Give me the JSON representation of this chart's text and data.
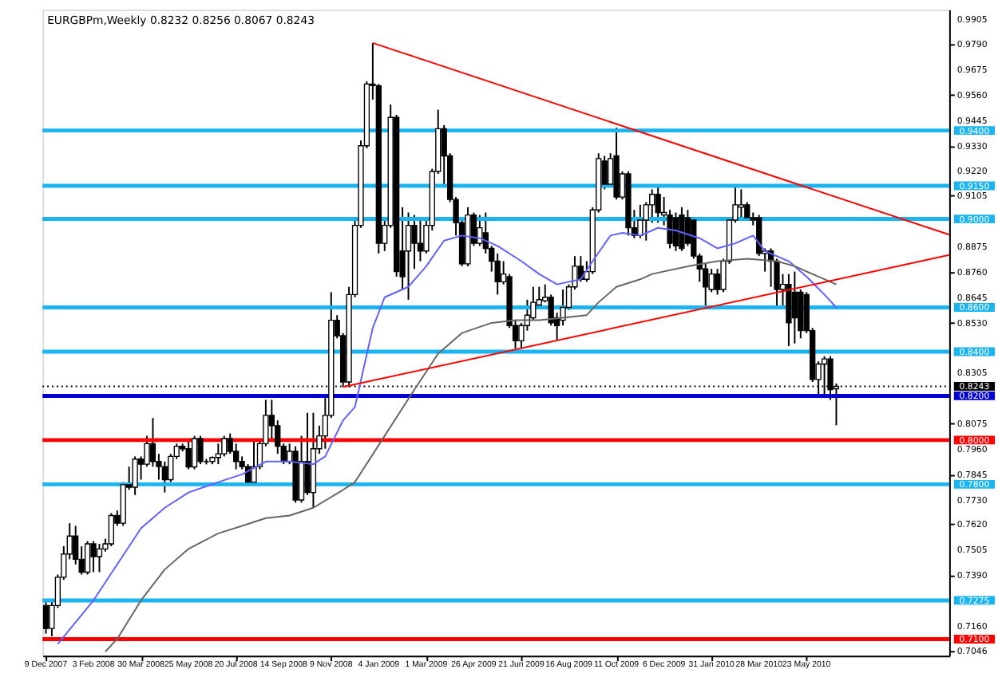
{
  "chart_data": {
    "type": "candlestick",
    "title": "EURGBPm,Weekly  0.8232 0.8256 0.8067 0.8243",
    "x": [
      "2007-12-09",
      "2007-12-16",
      "2007-12-23",
      "2007-12-30",
      "2008-01-06",
      "2008-01-13",
      "2008-01-20",
      "2008-01-27",
      "2008-02-03",
      "2008-02-10",
      "2008-02-17",
      "2008-02-24",
      "2008-03-02",
      "2008-03-09",
      "2008-03-16",
      "2008-03-23",
      "2008-03-30",
      "2008-04-06",
      "2008-04-13",
      "2008-04-20",
      "2008-04-27",
      "2008-05-04",
      "2008-05-11",
      "2008-05-18",
      "2008-05-25",
      "2008-06-01",
      "2008-06-08",
      "2008-06-15",
      "2008-06-22",
      "2008-06-29",
      "2008-07-06",
      "2008-07-13",
      "2008-07-20",
      "2008-07-27",
      "2008-08-03",
      "2008-08-10",
      "2008-08-17",
      "2008-08-24",
      "2008-08-31",
      "2008-09-07",
      "2008-09-14",
      "2008-09-21",
      "2008-09-28",
      "2008-10-05",
      "2008-10-12",
      "2008-10-19",
      "2008-10-26",
      "2008-11-02",
      "2008-11-09",
      "2008-11-16",
      "2008-11-23",
      "2008-11-30",
      "2008-12-07",
      "2008-12-14",
      "2008-12-21",
      "2008-12-28",
      "2009-01-04",
      "2009-01-11",
      "2009-01-18",
      "2009-01-25",
      "2009-02-01",
      "2009-02-08",
      "2009-02-15",
      "2009-02-22",
      "2009-03-01",
      "2009-03-08",
      "2009-03-15",
      "2009-03-22",
      "2009-03-29",
      "2009-04-05",
      "2009-04-12",
      "2009-04-19",
      "2009-04-26",
      "2009-05-03",
      "2009-05-10",
      "2009-05-17",
      "2009-05-24",
      "2009-05-31",
      "2009-06-07",
      "2009-06-14",
      "2009-06-21",
      "2009-06-28",
      "2009-07-05",
      "2009-07-12",
      "2009-07-19",
      "2009-07-26",
      "2009-08-02",
      "2009-08-09",
      "2009-08-16",
      "2009-08-23",
      "2009-08-30",
      "2009-09-06",
      "2009-09-13",
      "2009-09-20",
      "2009-09-27",
      "2009-10-04",
      "2009-10-11",
      "2009-10-18",
      "2009-10-25",
      "2009-11-01",
      "2009-11-08",
      "2009-11-15",
      "2009-11-22",
      "2009-11-29",
      "2009-12-06",
      "2009-12-13",
      "2009-12-20",
      "2009-12-27",
      "2010-01-03",
      "2010-01-10",
      "2010-01-17",
      "2010-01-24",
      "2010-01-31",
      "2010-02-07",
      "2010-02-14",
      "2010-02-21",
      "2010-02-28",
      "2010-03-07",
      "2010-03-14",
      "2010-03-21",
      "2010-03-28",
      "2010-04-04",
      "2010-04-11",
      "2010-04-18",
      "2010-04-25",
      "2010-05-02",
      "2010-05-09",
      "2010-05-16",
      "2010-05-23",
      "2010-05-30",
      "2010-06-06",
      "2010-06-13",
      "2010-06-20",
      "2010-06-27"
    ],
    "ohlc": [
      [
        0.7252,
        0.7276,
        0.7125,
        0.7148
      ],
      [
        0.7148,
        0.7276,
        0.7113,
        0.7252
      ],
      [
        0.7252,
        0.7392,
        0.7241,
        0.738
      ],
      [
        0.738,
        0.752,
        0.7368,
        0.7485
      ],
      [
        0.7485,
        0.7624,
        0.7461,
        0.7566
      ],
      [
        0.7566,
        0.7612,
        0.7438,
        0.7461
      ],
      [
        0.7461,
        0.752,
        0.7392,
        0.7403
      ],
      [
        0.7403,
        0.7543,
        0.7392,
        0.7531
      ],
      [
        0.7531,
        0.7543,
        0.7403,
        0.7473
      ],
      [
        0.7473,
        0.7531,
        0.7403,
        0.7508
      ],
      [
        0.7508,
        0.7554,
        0.7496,
        0.7531
      ],
      [
        0.7531,
        0.767,
        0.752,
        0.7659
      ],
      [
        0.7659,
        0.7682,
        0.7612,
        0.7624
      ],
      [
        0.7624,
        0.781,
        0.7612,
        0.7798
      ],
      [
        0.7798,
        0.788,
        0.7775,
        0.7787
      ],
      [
        0.7787,
        0.7926,
        0.7752,
        0.7914
      ],
      [
        0.7914,
        0.7926,
        0.7821,
        0.7891
      ],
      [
        0.7891,
        0.8019,
        0.788,
        0.7984
      ],
      [
        0.7984,
        0.81,
        0.788,
        0.7903
      ],
      [
        0.7903,
        0.7938,
        0.7821,
        0.788
      ],
      [
        0.788,
        0.7903,
        0.7763,
        0.7821
      ],
      [
        0.7821,
        0.7938,
        0.781,
        0.7926
      ],
      [
        0.7926,
        0.7984,
        0.7914,
        0.7972
      ],
      [
        0.7972,
        0.7984,
        0.7949,
        0.7961
      ],
      [
        0.7961,
        0.8007,
        0.7868,
        0.7879
      ],
      [
        0.7879,
        0.8019,
        0.7868,
        0.8007
      ],
      [
        0.8007,
        0.8019,
        0.7891,
        0.7903
      ],
      [
        0.7903,
        0.7915,
        0.789,
        0.7903
      ],
      [
        0.7903,
        0.7926,
        0.7891,
        0.7921
      ],
      [
        0.7921,
        0.7984,
        0.7891,
        0.7938
      ],
      [
        0.7938,
        0.8019,
        0.7926,
        0.8007
      ],
      [
        0.8007,
        0.803,
        0.7938,
        0.7949
      ],
      [
        0.7949,
        0.7984,
        0.7868,
        0.7903
      ],
      [
        0.7903,
        0.7926,
        0.7868,
        0.788
      ],
      [
        0.788,
        0.7891,
        0.7798,
        0.781
      ],
      [
        0.781,
        0.7996,
        0.7798,
        0.788
      ],
      [
        0.788,
        0.7996,
        0.7868,
        0.7984
      ],
      [
        0.7984,
        0.8182,
        0.7972,
        0.8112
      ],
      [
        0.8112,
        0.8182,
        0.7996,
        0.8065
      ],
      [
        0.8065,
        0.8089,
        0.7938,
        0.7972
      ],
      [
        0.7972,
        0.7984,
        0.7891,
        0.7903
      ],
      [
        0.7903,
        0.7984,
        0.7891,
        0.7949
      ],
      [
        0.7949,
        0.7972,
        0.7717,
        0.7729
      ],
      [
        0.7729,
        0.8019,
        0.7717,
        0.7903
      ],
      [
        0.7903,
        0.8123,
        0.7752,
        0.7763
      ],
      [
        0.7763,
        0.8123,
        0.7694,
        0.7961
      ],
      [
        0.7961,
        0.8065,
        0.7938,
        0.8019
      ],
      [
        0.8019,
        0.8205,
        0.7961,
        0.8112
      ],
      [
        0.8112,
        0.8669,
        0.81,
        0.8542
      ],
      [
        0.8542,
        0.8565,
        0.846,
        0.8472
      ],
      [
        0.8472,
        0.8484,
        0.824,
        0.8263
      ],
      [
        0.8263,
        0.8693,
        0.824,
        0.8658
      ],
      [
        0.8658,
        0.8995,
        0.8646,
        0.8971
      ],
      [
        0.8971,
        0.9355,
        0.896,
        0.9331
      ],
      [
        0.9331,
        0.9622,
        0.932,
        0.961
      ],
      [
        0.961,
        0.9796,
        0.954,
        0.9603
      ],
      [
        0.9603,
        0.961,
        0.8844,
        0.889
      ],
      [
        0.889,
        0.8995,
        0.8855,
        0.8971
      ],
      [
        0.8971,
        0.9517,
        0.896,
        0.9459
      ],
      [
        0.9459,
        0.9471,
        0.8739,
        0.8762
      ],
      [
        0.8855,
        0.9053,
        0.8681,
        0.8739
      ],
      [
        0.8855,
        0.9029,
        0.8635,
        0.8971
      ],
      [
        0.8971,
        0.9018,
        0.8774,
        0.889
      ],
      [
        0.889,
        0.8995,
        0.8809,
        0.8855
      ],
      [
        0.8855,
        0.9006,
        0.8844,
        0.8971
      ],
      [
        0.8971,
        0.9227,
        0.8948,
        0.9215
      ],
      [
        0.9215,
        0.9494,
        0.9204,
        0.9408
      ],
      [
        0.9408,
        0.9424,
        0.9157,
        0.9285
      ],
      [
        0.9285,
        0.9297,
        0.9076,
        0.9088
      ],
      [
        0.9088,
        0.9099,
        0.8925,
        0.8983
      ],
      [
        0.8983,
        0.9006,
        0.8786,
        0.8797
      ],
      [
        0.8797,
        0.9053,
        0.8786,
        0.9018
      ],
      [
        0.9018,
        0.9029,
        0.8878,
        0.889
      ],
      [
        0.889,
        0.9018,
        0.8878,
        0.896
      ],
      [
        0.8937,
        0.9029,
        0.8844,
        0.8867
      ],
      [
        0.8867,
        0.8878,
        0.8762,
        0.8809
      ],
      [
        0.8809,
        0.8844,
        0.8658,
        0.8716
      ],
      [
        0.8716,
        0.8809,
        0.8704,
        0.8751
      ],
      [
        0.8739,
        0.8751,
        0.8507,
        0.8518
      ],
      [
        0.8518,
        0.8542,
        0.8414,
        0.8449
      ],
      [
        0.8449,
        0.853,
        0.8414,
        0.8518
      ],
      [
        0.8518,
        0.8635,
        0.8495,
        0.8565
      ],
      [
        0.8553,
        0.8693,
        0.8542,
        0.8623
      ],
      [
        0.8611,
        0.8693,
        0.86,
        0.8635
      ],
      [
        0.863,
        0.8704,
        0.8623,
        0.8646
      ],
      [
        0.8646,
        0.8658,
        0.8518,
        0.853
      ],
      [
        0.8553,
        0.8576,
        0.8449,
        0.8518
      ],
      [
        0.8542,
        0.8681,
        0.8518,
        0.86
      ],
      [
        0.86,
        0.8704,
        0.8588,
        0.8693
      ],
      [
        0.8693,
        0.8832,
        0.8681,
        0.8786
      ],
      [
        0.8786,
        0.8832,
        0.8716,
        0.8727
      ],
      [
        0.8727,
        0.8809,
        0.8716,
        0.8762
      ],
      [
        0.8762,
        0.9053,
        0.8751,
        0.9041
      ],
      [
        0.9041,
        0.9297,
        0.9029,
        0.9273
      ],
      [
        0.9262,
        0.9285,
        0.9134,
        0.9157
      ],
      [
        0.9157,
        0.9297,
        0.9146,
        0.9273
      ],
      [
        0.9285,
        0.9413,
        0.9088,
        0.9099
      ],
      [
        0.9099,
        0.9215,
        0.9088,
        0.9204
      ],
      [
        0.9204,
        0.9215,
        0.8925,
        0.896
      ],
      [
        0.896,
        0.9041,
        0.8913,
        0.8925
      ],
      [
        0.8925,
        0.9064,
        0.8913,
        0.8995
      ],
      [
        0.8995,
        0.9076,
        0.8902,
        0.9064
      ],
      [
        0.9064,
        0.9134,
        0.8983,
        0.9111
      ],
      [
        0.9111,
        0.9146,
        0.8983,
        0.9029
      ],
      [
        0.9018,
        0.9099,
        0.8971,
        0.9029
      ],
      [
        0.9018,
        0.9041,
        0.8867,
        0.889
      ],
      [
        0.9006,
        0.9029,
        0.8855,
        0.8878
      ],
      [
        0.9018,
        0.9053,
        0.8855,
        0.8867
      ],
      [
        0.9006,
        0.9041,
        0.8878,
        0.889
      ],
      [
        0.8995,
        0.9006,
        0.882,
        0.8832
      ],
      [
        0.8832,
        0.8844,
        0.8716,
        0.8774
      ],
      [
        0.8774,
        0.8797,
        0.86,
        0.8693
      ],
      [
        0.8681,
        0.8774,
        0.8669,
        0.8751
      ],
      [
        0.8751,
        0.8774,
        0.8658,
        0.8681
      ],
      [
        0.8681,
        0.882,
        0.8669,
        0.8809
      ],
      [
        0.8809,
        0.9006,
        0.8797,
        0.8995
      ],
      [
        0.8995,
        0.9146,
        0.8983,
        0.9064
      ],
      [
        0.9053,
        0.9134,
        0.8995,
        0.9064
      ],
      [
        0.9064,
        0.9076,
        0.8995,
        0.9006
      ],
      [
        0.9006,
        0.9029,
        0.8971,
        0.8995
      ],
      [
        0.9006,
        0.9018,
        0.8832,
        0.8844
      ],
      [
        0.8844,
        0.8867,
        0.8762,
        0.8855
      ],
      [
        0.8855,
        0.8867,
        0.8693,
        0.8809
      ],
      [
        0.8809,
        0.882,
        0.86,
        0.8681
      ],
      [
        0.8681,
        0.8751,
        0.86,
        0.8704
      ],
      [
        0.8704,
        0.8751,
        0.8425,
        0.853
      ],
      [
        0.8669,
        0.8762,
        0.8437,
        0.8553
      ],
      [
        0.8669,
        0.8681,
        0.846,
        0.8495
      ],
      [
        0.8658,
        0.8669,
        0.8484,
        0.8495
      ],
      [
        0.8495,
        0.8507,
        0.8263,
        0.8274
      ],
      [
        0.8274,
        0.8356,
        0.8205,
        0.8344
      ],
      [
        0.8344,
        0.8379,
        0.8205,
        0.8367
      ],
      [
        0.8367,
        0.8379,
        0.8182,
        0.8228
      ],
      [
        0.8232,
        0.8256,
        0.8067,
        0.8243
      ]
    ],
    "series": [
      {
        "type": "line",
        "color": "#6060ff",
        "x": [
          "2007-12-23",
          "2008-02-03",
          "2008-03-02",
          "2008-03-30",
          "2008-04-27",
          "2008-05-25",
          "2008-06-29",
          "2008-07-27",
          "2008-08-24",
          "2008-09-21",
          "2008-10-19",
          "2008-11-02",
          "2008-11-23",
          "2008-12-07",
          "2008-12-28",
          "2009-01-11",
          "2009-02-08",
          "2009-03-01",
          "2009-03-22",
          "2009-04-12",
          "2009-05-03",
          "2009-05-24",
          "2009-06-21",
          "2009-07-12",
          "2009-08-02",
          "2009-08-30",
          "2009-09-13",
          "2009-10-04",
          "2009-10-18",
          "2009-11-08",
          "2009-11-22",
          "2009-11-29",
          "2009-12-20",
          "2010-01-17",
          "2010-02-07",
          "2010-02-28",
          "2010-03-21",
          "2010-04-04",
          "2010-05-02",
          "2010-05-23",
          "2010-06-13",
          "2010-06-27"
        ],
        "values": [
          0.7078,
          0.7275,
          0.7438,
          0.7601,
          0.7694,
          0.7763,
          0.781,
          0.7845,
          0.7903,
          0.7903,
          0.7891,
          0.7926,
          0.8089,
          0.815,
          0.8507,
          0.8646,
          0.8693,
          0.8786,
          0.8902,
          0.8925,
          0.8913,
          0.8878,
          0.8809,
          0.8751,
          0.8704,
          0.8727,
          0.8809,
          0.8925,
          0.8937,
          0.8925,
          0.8948,
          0.896,
          0.8948,
          0.8913,
          0.8867,
          0.889,
          0.8925,
          0.8855,
          0.8809,
          0.8739,
          0.8658,
          0.86
        ]
      },
      {
        "type": "line",
        "color": "#666666",
        "x": [
          "2008-02-17",
          "2008-03-02",
          "2008-03-30",
          "2008-04-27",
          "2008-05-25",
          "2008-06-29",
          "2008-07-27",
          "2008-08-24",
          "2008-09-21",
          "2008-10-19",
          "2008-11-23",
          "2008-12-07",
          "2009-01-11",
          "2009-02-15",
          "2009-03-15",
          "2009-04-12",
          "2009-05-17",
          "2009-06-14",
          "2009-07-12",
          "2009-08-09",
          "2009-09-06",
          "2009-09-20",
          "2009-10-11",
          "2009-11-08",
          "2009-11-22",
          "2010-01-03",
          "2010-02-07",
          "2010-03-14",
          "2010-04-18",
          "2010-05-09",
          "2010-06-06",
          "2010-06-27"
        ],
        "values": [
          0.7043,
          0.7101,
          0.7275,
          0.7415,
          0.7508,
          0.7578,
          0.7612,
          0.7647,
          0.7659,
          0.7694,
          0.7775,
          0.781,
          0.8019,
          0.8228,
          0.8391,
          0.8484,
          0.853,
          0.8542,
          0.8542,
          0.8553,
          0.8565,
          0.8623,
          0.8693,
          0.8727,
          0.8751,
          0.8786,
          0.8809,
          0.882,
          0.8809,
          0.8786,
          0.8739,
          0.8704
        ]
      },
      {
        "type": "line",
        "color": "#ff0000",
        "x": [
          "2008-12-28",
          "2010-11-07"
        ],
        "values": [
          0.9796,
          0.8929
        ]
      },
      {
        "type": "line",
        "color": "#ff0000",
        "x": [
          "2008-11-23",
          "2010-11-07"
        ],
        "values": [
          0.824,
          0.8837
        ]
      }
    ],
    "ref_lines": [
      {
        "axis": "y",
        "value": 0.94,
        "label": "0.9400",
        "color": "#1ab4f0",
        "line_style": "solid"
      },
      {
        "axis": "y",
        "value": 0.915,
        "label": "0.9150",
        "color": "#1ab4f0",
        "line_style": "solid"
      },
      {
        "axis": "y",
        "value": 0.9,
        "label": "0.9000",
        "color": "#1ab4f0",
        "line_style": "solid"
      },
      {
        "axis": "y",
        "value": 0.86,
        "label": "0.8600",
        "color": "#1ab4f0",
        "line_style": "solid"
      },
      {
        "axis": "y",
        "value": 0.84,
        "label": "0.8400",
        "color": "#1ab4f0",
        "line_style": "solid"
      },
      {
        "axis": "y",
        "value": 0.8243,
        "label": "0.8243",
        "color": "#000000",
        "line_style": "dotted"
      },
      {
        "axis": "y",
        "value": 0.82,
        "label": "0.8200",
        "color": "#0000d0",
        "line_style": "solid"
      },
      {
        "axis": "y",
        "value": 0.8,
        "label": "0.8000",
        "color": "#ff0000",
        "line_style": "solid"
      },
      {
        "axis": "y",
        "value": 0.78,
        "label": "0.7800",
        "color": "#1ab4f0",
        "line_style": "solid"
      },
      {
        "axis": "y",
        "value": 0.7275,
        "label": "0.7275",
        "color": "#1ab4f0",
        "line_style": "solid"
      },
      {
        "axis": "y",
        "value": 0.71,
        "label": "0.7100",
        "color": "#ff0000",
        "line_style": "solid"
      }
    ],
    "xlim": [
      "2007-12-05",
      "2010-11-07"
    ],
    "xticks": [
      {
        "value": "2007-12-09",
        "label": "9 Dec 2007"
      },
      {
        "value": "2008-02-03",
        "label": "3 Feb 2008"
      },
      {
        "value": "2008-03-30",
        "label": "30 Mar 2008"
      },
      {
        "value": "2008-05-25",
        "label": "25 May 2008"
      },
      {
        "value": "2008-07-20",
        "label": "20 Jul 2008"
      },
      {
        "value": "2008-09-14",
        "label": "14 Sep 2008"
      },
      {
        "value": "2008-11-09",
        "label": "9 Nov 2008"
      },
      {
        "value": "2009-01-04",
        "label": "4 Jan 2009"
      },
      {
        "value": "2009-03-01",
        "label": "1 Mar 2009"
      },
      {
        "value": "2009-04-26",
        "label": "26 Apr 2009"
      },
      {
        "value": "2009-06-21",
        "label": "21 Jun 2009"
      },
      {
        "value": "2009-08-16",
        "label": "16 Aug 2009"
      },
      {
        "value": "2009-10-11",
        "label": "11 Oct 2009"
      },
      {
        "value": "2009-12-06",
        "label": "6 Dec 2009"
      },
      {
        "value": "2010-01-31",
        "label": "31 Jan 2010"
      },
      {
        "value": "2010-03-28",
        "label": "28 Mar 2010"
      },
      {
        "value": "2010-05-23",
        "label": "23 May 2010"
      }
    ],
    "ylim": [
      0.7025,
      0.9947
    ],
    "yticks": [
      {
        "value": 0.9905,
        "label": "0.9905"
      },
      {
        "value": 0.979,
        "label": "0.9790"
      },
      {
        "value": 0.9675,
        "label": "0.9675"
      },
      {
        "value": 0.956,
        "label": "0.9560"
      },
      {
        "value": 0.9445,
        "label": "0.9445"
      },
      {
        "value": 0.933,
        "label": "0.9330"
      },
      {
        "value": 0.922,
        "label": "0.9220"
      },
      {
        "value": 0.9105,
        "label": "0.9105"
      },
      {
        "value": 0.8875,
        "label": "0.8875"
      },
      {
        "value": 0.876,
        "label": "0.8760"
      },
      {
        "value": 0.8645,
        "label": "0.8645"
      },
      {
        "value": 0.853,
        "label": "0.8530"
      },
      {
        "value": 0.8305,
        "label": "0.8305"
      },
      {
        "value": 0.8075,
        "label": "0.8075"
      },
      {
        "value": 0.796,
        "label": "0.7960"
      },
      {
        "value": 0.7845,
        "label": "0.7845"
      },
      {
        "value": 0.773,
        "label": "0.7730"
      },
      {
        "value": 0.762,
        "label": "0.7620"
      },
      {
        "value": 0.7505,
        "label": "0.7505"
      },
      {
        "value": 0.739,
        "label": "0.7390"
      },
      {
        "value": 0.716,
        "label": "0.7160"
      },
      {
        "value": 0.7046,
        "label": "0.7046"
      }
    ]
  }
}
